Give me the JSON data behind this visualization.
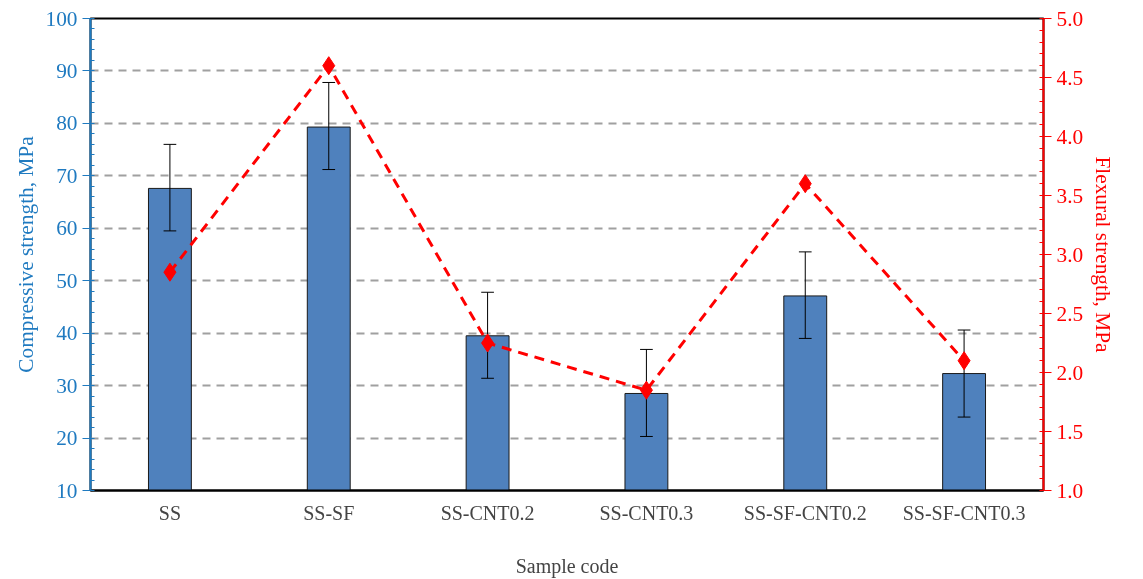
{
  "chart_data": {
    "type": "bar",
    "xlabel": "Sample code",
    "ylabel": "Compressive strength, MPa",
    "y2label": "Flexural strength, MPa",
    "categories": [
      "SS",
      "SS-SF",
      "SS-CNT0.2",
      "SS-CNT0.3",
      "SS-SF-CNT0.2",
      "SS-SF-CNT0.3"
    ],
    "series": [
      {
        "color": "#4f81bd",
        "values": [
          67.6,
          79.3,
          39.5,
          28.5,
          47.1,
          32.3
        ],
        "errors": [
          [
            59.5,
            76.0
          ],
          [
            71.2,
            87.8
          ],
          [
            31.4,
            47.8
          ],
          [
            20.3,
            36.9
          ],
          [
            39.0,
            55.5
          ],
          [
            24.0,
            40.6
          ]
        ]
      },
      {
        "type": "line",
        "axis": "y2",
        "color": "#ff0000",
        "values": [
          2.85,
          4.6,
          2.25,
          1.85,
          3.6,
          2.1
        ],
        "marker": "diamond",
        "line_style": "dashed"
      }
    ],
    "ylim": [
      10,
      100
    ],
    "yticks": [
      10,
      20,
      30,
      40,
      50,
      60,
      70,
      80,
      90,
      100
    ],
    "y2lim": [
      1.0,
      5.0
    ],
    "y2ticks": [
      {
        "value": 1.0,
        "label": "1.0"
      },
      {
        "value": 1.5,
        "label": "1.5"
      },
      {
        "value": 2.0,
        "label": "2.0"
      },
      {
        "value": 2.5,
        "label": "2.5"
      },
      {
        "value": 3.0,
        "label": "3.0"
      },
      {
        "value": 3.5,
        "label": "3.5"
      },
      {
        "value": 4.0,
        "label": "4.0"
      },
      {
        "value": 4.5,
        "label": "4.5"
      },
      {
        "value": 5.0,
        "label": "5.0"
      }
    ],
    "grid": "y"
  }
}
